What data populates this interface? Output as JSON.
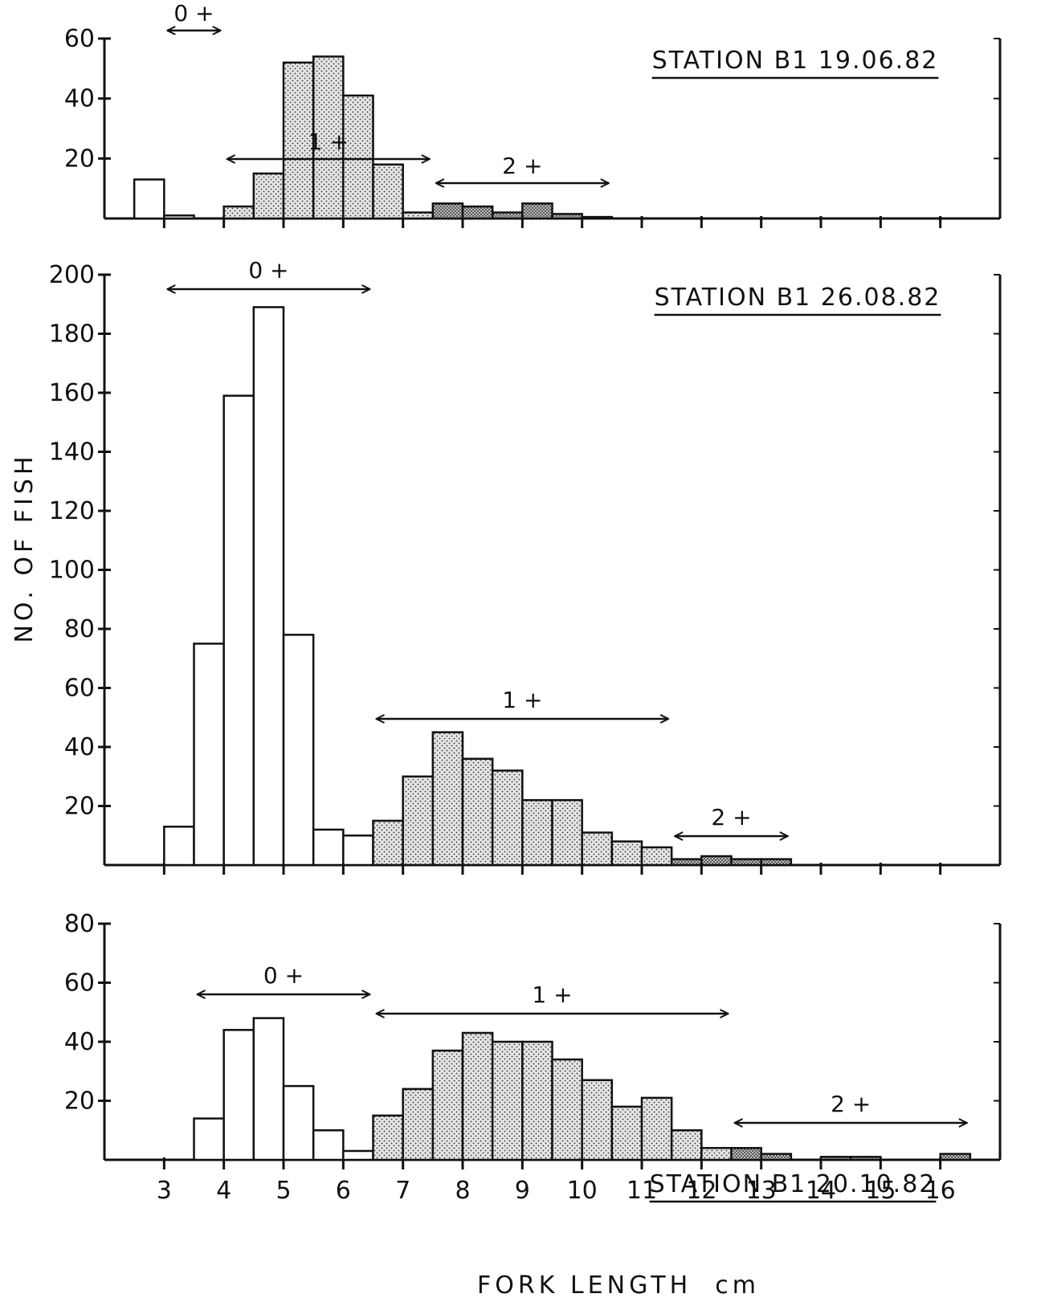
{
  "figure": {
    "ylabel": "NO. OF FISH",
    "xlabel": "FORK LENGTH  cm"
  },
  "colors": {
    "ink": "#111111",
    "background": "#ffffff",
    "stipple_face": "#dedede",
    "dense_stipple_face": "#b4b4b4"
  },
  "chart_data": [
    {
      "type": "bar",
      "title": "STATION  B1  19.06.82",
      "xlabel": "",
      "ylabel": "",
      "xlim": [
        2,
        17
      ],
      "ylim": [
        0,
        60
      ],
      "yticks": [
        "20",
        "40",
        "60"
      ],
      "bin_width_cm": 0.5,
      "series": [
        {
          "name": "0+",
          "fill": "white",
          "x": [
            3.0,
            3.5
          ],
          "values": [
            13,
            1
          ]
        },
        {
          "name": "1+",
          "fill": "stipple",
          "x": [
            4.5,
            5.0,
            5.5,
            6.0,
            6.5,
            7.0,
            7.5
          ],
          "values": [
            4,
            15,
            52,
            54,
            41,
            18,
            2
          ]
        },
        {
          "name": "2+",
          "fill": "dense-stipple",
          "x": [
            8.0,
            8.5,
            9.0,
            9.5,
            10.0,
            10.5
          ],
          "values": [
            5,
            4,
            2,
            5,
            1.5,
            0.5
          ]
        }
      ],
      "age_groups": [
        {
          "label": "0 +",
          "x_range": [
            3.0,
            4.0
          ]
        },
        {
          "label": "1 +",
          "x_range": [
            4.0,
            7.5
          ]
        },
        {
          "label": "2 +",
          "x_range": [
            7.5,
            10.5
          ]
        }
      ]
    },
    {
      "type": "bar",
      "title": "STATION  B1  26.08.82",
      "xlabel": "",
      "ylabel": "",
      "xlim": [
        2,
        17
      ],
      "ylim": [
        0,
        200
      ],
      "yticks": [
        "20",
        "40",
        "60",
        "80",
        "100",
        "120",
        "140",
        "160",
        "180",
        "200"
      ],
      "bin_width_cm": 0.5,
      "series": [
        {
          "name": "0+",
          "fill": "white",
          "x": [
            3.5,
            4.0,
            4.5,
            5.0,
            5.5,
            6.0,
            6.5
          ],
          "values": [
            13,
            75,
            159,
            189,
            78,
            12,
            10
          ]
        },
        {
          "name": "1+",
          "fill": "stipple",
          "x": [
            7.0,
            7.5,
            8.0,
            8.5,
            9.0,
            9.5,
            10.0,
            10.5,
            11.0,
            11.5
          ],
          "values": [
            15,
            30,
            45,
            36,
            32,
            22,
            22,
            11,
            8,
            6
          ]
        },
        {
          "name": "2+",
          "fill": "dense-stipple",
          "x": [
            12.0,
            12.5,
            13.0,
            13.5
          ],
          "values": [
            2,
            3,
            2,
            2
          ]
        }
      ],
      "age_groups": [
        {
          "label": "0 +",
          "x_range": [
            3.0,
            6.5
          ]
        },
        {
          "label": "1 +",
          "x_range": [
            6.5,
            11.5
          ]
        },
        {
          "label": "2 +",
          "x_range": [
            11.5,
            13.5
          ]
        }
      ]
    },
    {
      "type": "bar",
      "title": "STATION  B1  20.10.82",
      "xlabel": "FORK LENGTH  cm",
      "ylabel": "",
      "xlim": [
        2,
        17
      ],
      "ylim": [
        0,
        80
      ],
      "yticks": [
        "20",
        "40",
        "60",
        "80"
      ],
      "xticks": [
        "3",
        "4",
        "5",
        "6",
        "7",
        "8",
        "9",
        "10",
        "11",
        "12",
        "13",
        "14",
        "15",
        "16"
      ],
      "bin_width_cm": 0.5,
      "series": [
        {
          "name": "0+",
          "fill": "white",
          "x": [
            4.0,
            4.5,
            5.0,
            5.5,
            6.0,
            6.5
          ],
          "values": [
            14,
            44,
            48,
            25,
            10,
            3
          ]
        },
        {
          "name": "1+",
          "fill": "stipple",
          "x": [
            7.0,
            7.5,
            8.0,
            8.5,
            9.0,
            9.5,
            10.0,
            10.5,
            11.0,
            11.5,
            12.0,
            12.5
          ],
          "values": [
            15,
            24,
            37,
            43,
            40,
            40,
            34,
            27,
            18,
            21,
            10,
            4
          ]
        },
        {
          "name": "2+",
          "fill": "dense-stipple",
          "x": [
            13.0,
            13.5,
            14.5,
            15.0,
            16.5
          ],
          "values": [
            4,
            2,
            1,
            1,
            2
          ]
        }
      ],
      "age_groups": [
        {
          "label": "0 +",
          "x_range": [
            3.5,
            6.5
          ]
        },
        {
          "label": "1 +",
          "x_range": [
            6.5,
            12.5
          ]
        },
        {
          "label": "2 +",
          "x_range": [
            12.5,
            16.5
          ]
        }
      ]
    }
  ]
}
